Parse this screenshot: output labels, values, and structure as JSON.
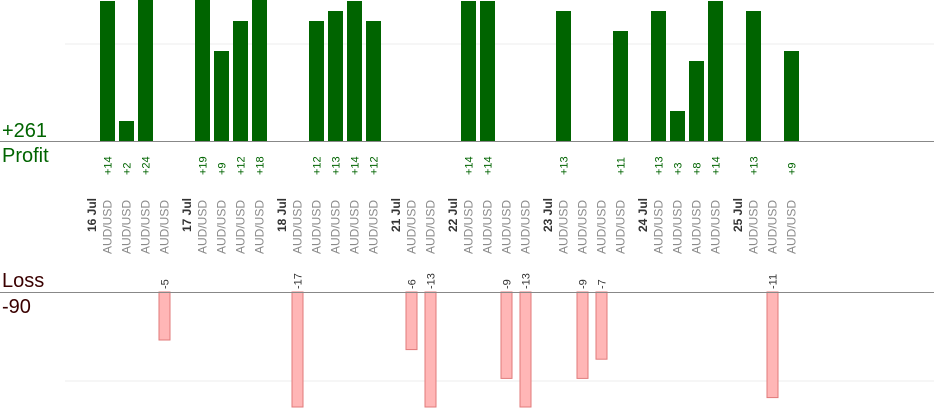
{
  "summary": {
    "profit_total": "+261",
    "profit_label": "Profit",
    "loss_label": "Loss",
    "loss_total": "-90"
  },
  "colors": {
    "profit_bar": "#006400",
    "loss_bar": "#ffb6b6",
    "loss_bar_stroke": "#e07a7a",
    "profit_text": "#006400",
    "loss_text": "#3a0000",
    "axis": "#888888",
    "grid": "#eeeeee",
    "category_text": "#8a8a8a",
    "date_text": "#333333"
  },
  "chart_data": {
    "type": "bar",
    "title": "",
    "xlabel": "",
    "ylabel": "",
    "grid": true,
    "profit_ylim": [
      0,
      14
    ],
    "loss_ylim": [
      0,
      12
    ],
    "groups": [
      {
        "date": "16 Jul",
        "trades": [
          {
            "pair": "AUD/USD",
            "value": 14
          },
          {
            "pair": "AUD/USD",
            "value": 2
          },
          {
            "pair": "AUD/USD",
            "value": 24
          },
          {
            "pair": "AUD/USD",
            "value": -5
          }
        ]
      },
      {
        "date": "17 Jul",
        "trades": [
          {
            "pair": "AUD/USD",
            "value": 19
          },
          {
            "pair": "AUD/USD",
            "value": 9
          },
          {
            "pair": "AUD/USD",
            "value": 12
          },
          {
            "pair": "AUD/USD",
            "value": 18
          }
        ]
      },
      {
        "date": "18 Jul",
        "trades": [
          {
            "pair": "AUD/USD",
            "value": -17
          },
          {
            "pair": "AUD/USD",
            "value": 12
          },
          {
            "pair": "AUD/USD",
            "value": 13
          },
          {
            "pair": "AUD/USD",
            "value": 14
          },
          {
            "pair": "AUD/USD",
            "value": 12
          }
        ]
      },
      {
        "date": "21 Jul",
        "trades": [
          {
            "pair": "AUD/USD",
            "value": -6
          },
          {
            "pair": "AUD/USD",
            "value": -13
          }
        ]
      },
      {
        "date": "22 Jul",
        "trades": [
          {
            "pair": "AUD/USD",
            "value": 14
          },
          {
            "pair": "AUD/USD",
            "value": 14
          },
          {
            "pair": "AUD/USD",
            "value": -9
          },
          {
            "pair": "AUD/USD",
            "value": -13
          }
        ]
      },
      {
        "date": "23 Jul",
        "trades": [
          {
            "pair": "AUD/USD",
            "value": 13
          },
          {
            "pair": "AUD/USD",
            "value": -9
          },
          {
            "pair": "AUD/USD",
            "value": -7
          },
          {
            "pair": "AUD/USD",
            "value": 11
          }
        ]
      },
      {
        "date": "24 Jul",
        "trades": [
          {
            "pair": "AUD/USD",
            "value": 13
          },
          {
            "pair": "AUD/USD",
            "value": 3
          },
          {
            "pair": "AUD/USD",
            "value": 8
          },
          {
            "pair": "AUD/USD",
            "value": 14
          }
        ]
      },
      {
        "date": "25 Jul",
        "trades": [
          {
            "pair": "AUD/USD",
            "value": 13
          },
          {
            "pair": "AUD/USD",
            "value": -11
          },
          {
            "pair": "AUD/USD",
            "value": 9
          }
        ]
      }
    ]
  }
}
